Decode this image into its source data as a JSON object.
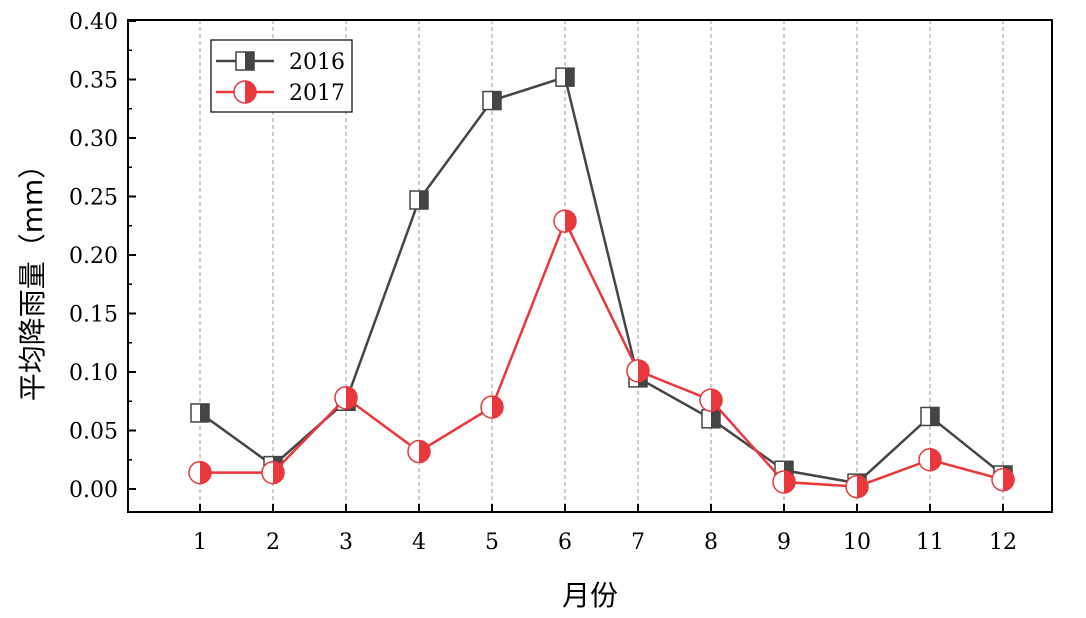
{
  "chart_data": {
    "type": "line",
    "xlabel": "月份",
    "ylabel": "平均降雨量（mm）",
    "categories": [
      "1",
      "2",
      "3",
      "4",
      "5",
      "6",
      "7",
      "8",
      "9",
      "10",
      "11",
      "12"
    ],
    "yticks": [
      "0.00",
      "0.05",
      "0.10",
      "0.15",
      "0.20",
      "0.25",
      "0.30",
      "0.35",
      "0.40"
    ],
    "ylim": [
      0,
      0.4
    ],
    "grid": "vertical dashed at each month",
    "legend_position": "top-left",
    "series": [
      {
        "name": "2016",
        "color": "#454545",
        "marker": "half-filled-square",
        "values": [
          0.065,
          0.02,
          0.075,
          0.247,
          0.332,
          0.352,
          0.095,
          0.06,
          0.016,
          0.005,
          0.062,
          0.012
        ]
      },
      {
        "name": "2017",
        "color": "#e8383d",
        "marker": "half-filled-circle",
        "values": [
          0.014,
          0.014,
          0.078,
          0.032,
          0.07,
          0.229,
          0.101,
          0.076,
          0.006,
          0.002,
          0.025,
          0.008
        ]
      }
    ]
  }
}
